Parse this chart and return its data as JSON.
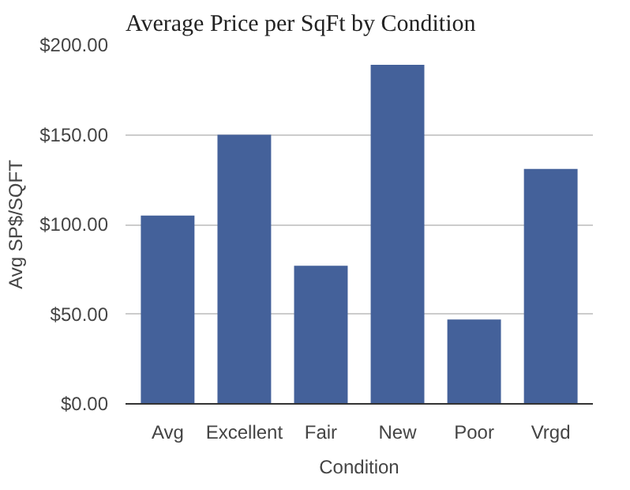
{
  "chart_data": {
    "type": "bar",
    "title": "Average Price per SqFt by Condition",
    "xlabel": "Condition",
    "ylabel": "Avg SP$/SQFT",
    "categories": [
      "Avg",
      "Excellent",
      "Fair",
      "New",
      "Poor",
      "Vrgd"
    ],
    "values": [
      105,
      150,
      77,
      189,
      47,
      131
    ],
    "color": "#44619a",
    "ylim": [
      0,
      200
    ],
    "yticks": [
      {
        "value": 0,
        "label": "$0.00"
      },
      {
        "value": 50,
        "label": "$50.00"
      },
      {
        "value": 100,
        "label": "$100.00"
      },
      {
        "value": 150,
        "label": "$150.00"
      },
      {
        "value": 200,
        "label": "$200.00"
      }
    ],
    "grid": "y"
  }
}
